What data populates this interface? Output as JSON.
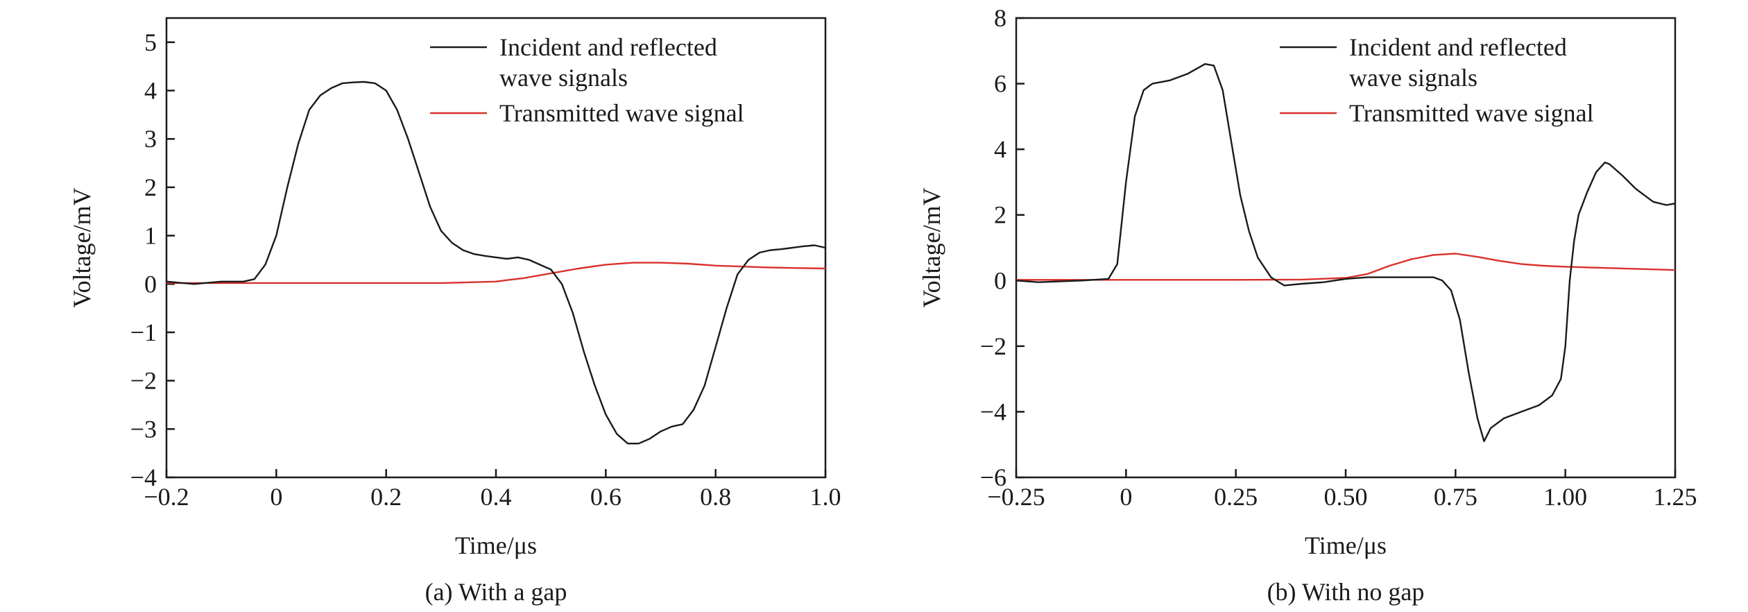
{
  "chart_data": [
    {
      "type": "line",
      "caption": "(a) With a gap",
      "xlabel": "Time/μs",
      "ylabel": "Voltage/mV",
      "xlim": [
        -0.2,
        1.0
      ],
      "ylim": [
        -4,
        5.5
      ],
      "xticks": [
        -0.2,
        0,
        0.2,
        0.4,
        0.6,
        0.8,
        1.0
      ],
      "xtick_labels": [
        "−0.2",
        "0",
        "0.2",
        "0.4",
        "0.6",
        "0.8",
        "1.0"
      ],
      "yticks": [
        -4,
        -3,
        -2,
        -1,
        0,
        1,
        2,
        3,
        4,
        5
      ],
      "ytick_labels": [
        "−4",
        "−3",
        "−2",
        "−1",
        "0",
        "1",
        "2",
        "3",
        "4",
        "5"
      ],
      "legend_position": "top-right",
      "series": [
        {
          "name": "Incident and reflected wave signals",
          "legend_lines": [
            "Incident and reflected",
            "wave signals"
          ],
          "color": "#1a1a1a",
          "x": [
            -0.2,
            -0.15,
            -0.1,
            -0.06,
            -0.04,
            -0.02,
            0,
            0.02,
            0.04,
            0.06,
            0.08,
            0.1,
            0.12,
            0.14,
            0.16,
            0.18,
            0.2,
            0.22,
            0.24,
            0.26,
            0.28,
            0.3,
            0.32,
            0.34,
            0.36,
            0.38,
            0.4,
            0.42,
            0.44,
            0.46,
            0.48,
            0.5,
            0.52,
            0.54,
            0.56,
            0.58,
            0.6,
            0.62,
            0.64,
            0.66,
            0.68,
            0.7,
            0.72,
            0.74,
            0.76,
            0.78,
            0.8,
            0.82,
            0.84,
            0.86,
            0.88,
            0.9,
            0.92,
            0.94,
            0.96,
            0.98,
            1.0
          ],
          "y": [
            0.05,
            0.0,
            0.05,
            0.05,
            0.1,
            0.4,
            1.0,
            2.0,
            2.9,
            3.6,
            3.9,
            4.05,
            4.15,
            4.17,
            4.18,
            4.15,
            4.0,
            3.6,
            3.0,
            2.3,
            1.6,
            1.1,
            0.85,
            0.7,
            0.62,
            0.58,
            0.55,
            0.52,
            0.55,
            0.5,
            0.4,
            0.3,
            0.0,
            -0.6,
            -1.4,
            -2.1,
            -2.7,
            -3.1,
            -3.3,
            -3.3,
            -3.2,
            -3.05,
            -2.95,
            -2.9,
            -2.6,
            -2.1,
            -1.3,
            -0.5,
            0.2,
            0.5,
            0.65,
            0.7,
            0.72,
            0.75,
            0.78,
            0.8,
            0.75
          ]
        },
        {
          "name": "Transmitted wave signal",
          "legend_lines": [
            "Transmitted wave signal"
          ],
          "color": "#d9302c",
          "x": [
            -0.2,
            0,
            0.2,
            0.3,
            0.4,
            0.42,
            0.45,
            0.5,
            0.55,
            0.6,
            0.65,
            0.7,
            0.75,
            0.8,
            0.85,
            0.9,
            0.95,
            1.0
          ],
          "y": [
            0.02,
            0.02,
            0.02,
            0.02,
            0.05,
            0.08,
            0.12,
            0.22,
            0.32,
            0.4,
            0.44,
            0.44,
            0.42,
            0.38,
            0.36,
            0.34,
            0.33,
            0.32
          ]
        }
      ]
    },
    {
      "type": "line",
      "caption": "(b) With no gap",
      "xlabel": "Time/μs",
      "ylabel": "Voltage/mV",
      "xlim": [
        -0.25,
        1.25
      ],
      "ylim": [
        -6,
        8
      ],
      "xticks": [
        -0.25,
        0,
        0.25,
        0.5,
        0.75,
        1.0,
        1.25
      ],
      "xtick_labels": [
        "−0.25",
        "0",
        "0.25",
        "0.50",
        "0.75",
        "1.00",
        "1.25"
      ],
      "yticks": [
        -6,
        -4,
        -2,
        0,
        2,
        4,
        6,
        8
      ],
      "ytick_labels": [
        "−6",
        "−4",
        "−2",
        "0",
        "2",
        "4",
        "6",
        "8"
      ],
      "legend_position": "top-right",
      "series": [
        {
          "name": "Incident and reflected wave signals",
          "legend_lines": [
            "Incident and reflected",
            "wave signals"
          ],
          "color": "#1a1a1a",
          "x": [
            -0.25,
            -0.2,
            -0.1,
            -0.04,
            -0.02,
            0.0,
            0.02,
            0.04,
            0.06,
            0.1,
            0.14,
            0.18,
            0.2,
            0.22,
            0.24,
            0.26,
            0.28,
            0.3,
            0.33,
            0.36,
            0.4,
            0.45,
            0.5,
            0.55,
            0.6,
            0.65,
            0.7,
            0.72,
            0.74,
            0.76,
            0.78,
            0.8,
            0.815,
            0.83,
            0.86,
            0.9,
            0.94,
            0.97,
            0.99,
            1.0,
            1.01,
            1.02,
            1.03,
            1.05,
            1.07,
            1.09,
            1.1,
            1.13,
            1.16,
            1.2,
            1.23,
            1.25
          ],
          "y": [
            0.0,
            -0.05,
            0.0,
            0.05,
            0.5,
            3.0,
            5.0,
            5.8,
            6.0,
            6.1,
            6.3,
            6.6,
            6.55,
            5.8,
            4.2,
            2.6,
            1.5,
            0.7,
            0.1,
            -0.15,
            -0.1,
            -0.05,
            0.05,
            0.1,
            0.1,
            0.1,
            0.1,
            0.0,
            -0.3,
            -1.2,
            -2.8,
            -4.2,
            -4.9,
            -4.5,
            -4.2,
            -4.0,
            -3.8,
            -3.5,
            -3.0,
            -2.0,
            0.0,
            1.2,
            2.0,
            2.7,
            3.3,
            3.6,
            3.55,
            3.2,
            2.8,
            2.4,
            2.3,
            2.35
          ]
        },
        {
          "name": "Transmitted wave signal",
          "legend_lines": [
            "Transmitted wave signal"
          ],
          "color": "#d9302c",
          "x": [
            -0.25,
            0,
            0.25,
            0.4,
            0.5,
            0.55,
            0.6,
            0.65,
            0.7,
            0.75,
            0.8,
            0.85,
            0.9,
            0.95,
            1.0,
            1.05,
            1.1,
            1.15,
            1.2,
            1.25
          ],
          "y": [
            0.02,
            0.02,
            0.02,
            0.03,
            0.08,
            0.2,
            0.45,
            0.65,
            0.78,
            0.82,
            0.72,
            0.6,
            0.5,
            0.45,
            0.42,
            0.4,
            0.38,
            0.36,
            0.34,
            0.32
          ]
        }
      ]
    }
  ]
}
